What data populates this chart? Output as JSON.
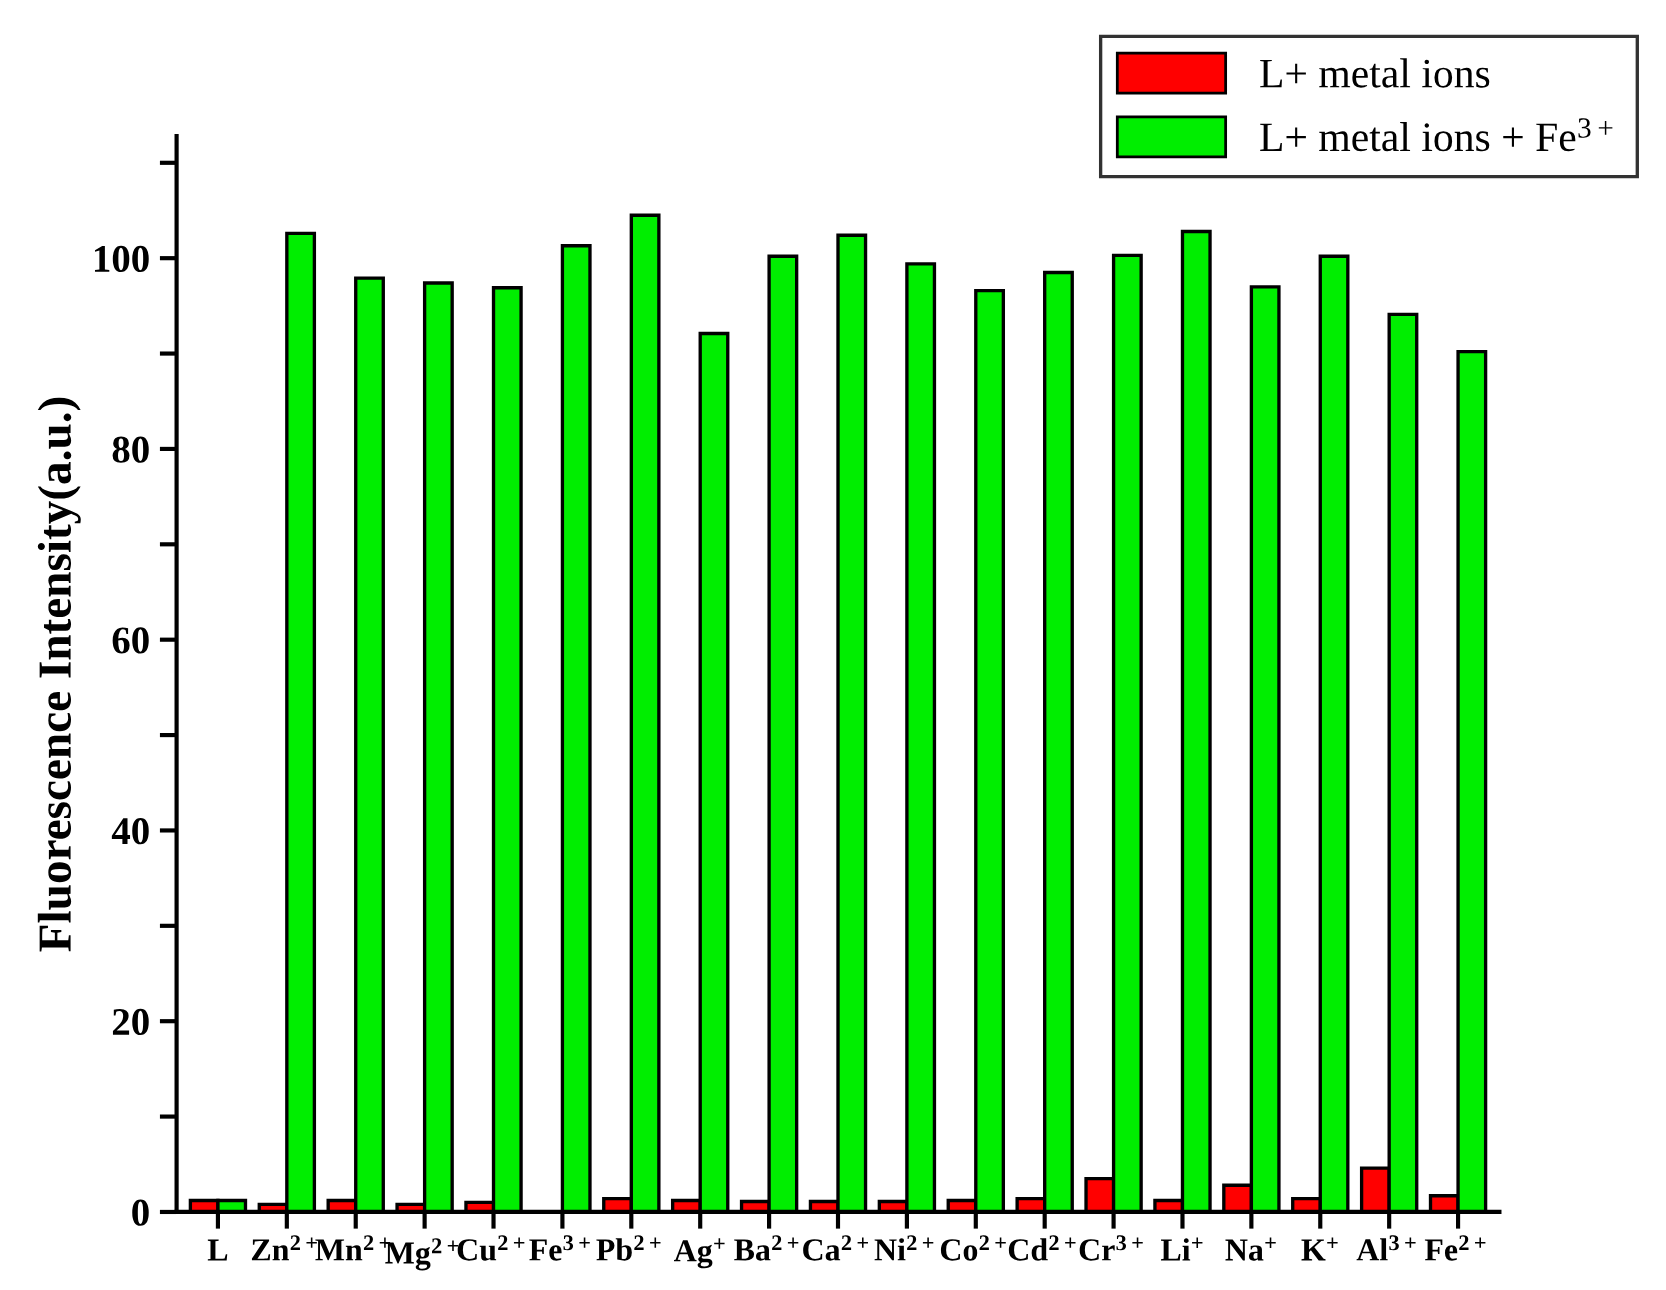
{
  "chart_data": {
    "type": "bar",
    "ylabel": "Fluorescence Intensity(a.u.)",
    "categories": [
      "L",
      "Zn$^{2+}$",
      "Mn$^{2+}$",
      "Mg$^{2+}$",
      "Cu$^{2+}$",
      "Fe$^{3+}$",
      "Pb$^{2+}$",
      "Ag$^{+}$",
      "Ba$^{2+}$",
      "Ca$^{2+}$",
      "Ni$^{2+}$",
      "Co$^{2+}$",
      "Cd$^{2+}$",
      "Cr$^{3+}$",
      "Li$^{+}$",
      "Na$^{+}$",
      "K$^{+}$",
      "Al$^{3+}$",
      "Fe$^{2+}$"
    ],
    "series": [
      {
        "name": "L+ metal ions",
        "color": "#ff0000",
        "values": [
          1.2,
          0.8,
          1.2,
          0.8,
          1.0,
          null,
          1.4,
          1.2,
          1.1,
          1.1,
          1.1,
          1.2,
          1.4,
          3.5,
          1.2,
          2.8,
          1.4,
          4.6,
          1.7
        ]
      },
      {
        "name": "L+ metal ions + Fe$^{3+}$",
        "color": "#00ee00",
        "values": [
          1.2,
          102.6,
          97.9,
          97.4,
          96.9,
          101.3,
          104.5,
          92.1,
          100.2,
          102.4,
          99.4,
          96.6,
          98.5,
          100.3,
          102.8,
          97.0,
          100.2,
          94.1,
          90.2
        ]
      }
    ],
    "ylim": [
      0,
      112.8
    ],
    "yticks": [
      0,
      {
        "value": 10,
        "label": null
      },
      20,
      {
        "value": 30,
        "label": null
      },
      40,
      {
        "value": 50,
        "label": null
      },
      60,
      {
        "value": 70,
        "label": null
      },
      80,
      {
        "value": 90,
        "label": null
      },
      100,
      {
        "value": 110,
        "label": null
      }
    ],
    "grid": false,
    "legend": "top right"
  }
}
